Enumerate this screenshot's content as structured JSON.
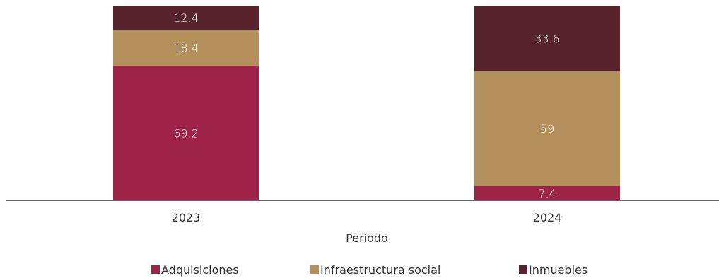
{
  "chart_data": {
    "type": "bar",
    "stacked": true,
    "categories": [
      "2023",
      "2024"
    ],
    "series": [
      {
        "name": "Adquisiciones",
        "color": "#9e2348",
        "values": [
          69.2,
          7.4
        ]
      },
      {
        "name": "Infraestructura social",
        "color": "#b38f5c",
        "values": [
          18.4,
          59
        ]
      },
      {
        "name": "Inmuebles",
        "color": "#57232d",
        "values": [
          12.4,
          33.6
        ]
      }
    ],
    "xlabel": "Periodo",
    "ylabel": "",
    "ylim": [
      0,
      100
    ],
    "legend_position": "bottom",
    "grid": false
  }
}
